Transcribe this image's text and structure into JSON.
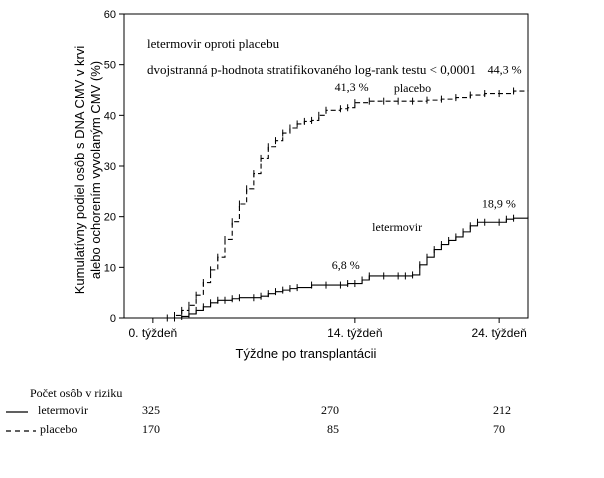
{
  "chart_data": {
    "type": "line",
    "title_lines": [
      "letermovir oproti placebu",
      "dvojstranná p-hodnota stratifikovaného log-rank testu < 0,0001"
    ],
    "xlabel": "Týždne po transplantácii",
    "ylabel_lines": [
      "Kumulatívny podiel osôb s DNA CMV v krvi",
      "alebo ochorením vyvolaným CMV (%)"
    ],
    "xlim": [
      -2,
      26
    ],
    "ylim": [
      0,
      60
    ],
    "x_ticks": [
      {
        "value": 0,
        "label": "0. týždeň"
      },
      {
        "value": 14,
        "label": "14. týždeň"
      },
      {
        "value": 24,
        "label": "24. týždeň"
      }
    ],
    "y_ticks": [
      0,
      10,
      20,
      30,
      40,
      50,
      60
    ],
    "grid": false,
    "series": [
      {
        "name": "letermovir",
        "style": "solid",
        "color": "#000000",
        "x": [
          -1,
          1.5,
          2,
          2.5,
          3,
          3.5,
          4,
          4.5,
          5,
          5.5,
          6,
          7,
          7.5,
          8,
          8.5,
          9,
          9.5,
          10,
          11,
          12,
          13,
          13.5,
          14,
          14.5,
          15,
          16,
          17,
          17.5,
          18,
          18.5,
          19,
          19.5,
          20,
          20.5,
          21,
          21.5,
          22,
          22.5,
          23,
          24,
          24.5,
          25,
          26
        ],
        "y": [
          0,
          0,
          0.3,
          0.8,
          1.5,
          2.2,
          3,
          3.5,
          3.5,
          3.8,
          4,
          4,
          4.3,
          4.8,
          5.2,
          5.5,
          5.8,
          6,
          6.5,
          6.5,
          6.5,
          6.8,
          6.8,
          7.5,
          8.3,
          8.3,
          8.3,
          8.3,
          8.5,
          10.5,
          12,
          13.5,
          14.5,
          15.3,
          16,
          17,
          18.2,
          18.9,
          18.9,
          18.9,
          19.5,
          19.7,
          20
        ]
      },
      {
        "name": "placebo",
        "style": "dashed",
        "color": "#000000",
        "x": [
          -1,
          1,
          1.5,
          2,
          2.5,
          3,
          3.5,
          4,
          4.5,
          5,
          5.5,
          6,
          6.5,
          7,
          7.5,
          8,
          8.5,
          9,
          9.5,
          10,
          10.5,
          11,
          11.5,
          12,
          13,
          13.5,
          14,
          15,
          16,
          17,
          18,
          19,
          20,
          21,
          22,
          23,
          24,
          25,
          26
        ],
        "y": [
          0,
          0,
          0.5,
          1.5,
          2.5,
          4.5,
          7,
          9.5,
          12,
          15.5,
          19,
          22.5,
          25.5,
          28.5,
          31.5,
          33.8,
          35,
          36.5,
          37.5,
          38.3,
          38.8,
          39,
          40,
          41,
          41.3,
          41.5,
          42.5,
          42.8,
          42.8,
          42.8,
          42.8,
          43,
          43.2,
          43.5,
          44,
          44.3,
          44.3,
          44.8,
          45
        ]
      }
    ],
    "annotations": [
      {
        "text": "41,3  %",
        "x": 12.6,
        "y": 44.8
      },
      {
        "text": "placebo",
        "x": 16.7,
        "y": 44.6
      },
      {
        "text": "44,3  %",
        "x": 23.2,
        "y": 48.3
      },
      {
        "text": "letermovir",
        "x": 15.2,
        "y": 17.2
      },
      {
        "text": "18,9  %",
        "x": 22.8,
        "y": 21.8
      },
      {
        "text": "6,8  %",
        "x": 12.4,
        "y": 9.7
      }
    ]
  },
  "risk_table": {
    "title": "Počet osôb v riziku",
    "rows": [
      {
        "label": "letermovir",
        "style": "solid",
        "values": [
          "325",
          "270",
          "212"
        ]
      },
      {
        "label": "placebo",
        "style": "dashed",
        "values": [
          "170",
          "85",
          "70"
        ]
      }
    ]
  }
}
